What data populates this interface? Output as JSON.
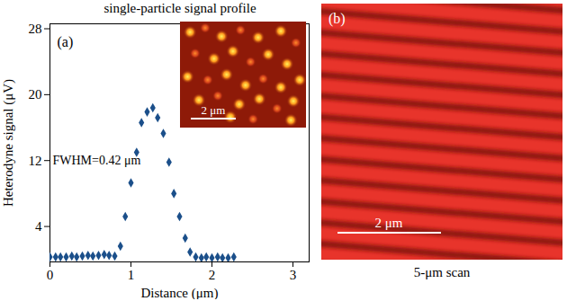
{
  "chart_data": {
    "type": "scatter",
    "panel": "(a)",
    "title": "single-particle signal profile",
    "x_label": "Distance (μm)",
    "y_label": "Heterodyne signal (μV)",
    "x": [
      0,
      0.07,
      0.13,
      0.2,
      0.27,
      0.33,
      0.4,
      0.47,
      0.53,
      0.6,
      0.67,
      0.73,
      0.8,
      0.87,
      0.93,
      1.0,
      1.07,
      1.13,
      1.2,
      1.27,
      1.33,
      1.4,
      1.47,
      1.53,
      1.6,
      1.67,
      1.73,
      1.8,
      1.87,
      1.93,
      2.0,
      2.07,
      2.13,
      2.2,
      2.27
    ],
    "values": [
      0.3,
      0.3,
      0.3,
      0.3,
      0.4,
      0.3,
      0.4,
      0.5,
      0.4,
      0.5,
      0.6,
      0.5,
      0.4,
      1.6,
      5.2,
      9.3,
      13.0,
      16.6,
      17.9,
      18.4,
      17.2,
      15.3,
      11.8,
      8.0,
      5.2,
      2.6,
      0.9,
      0.3,
      0.2,
      0.3,
      0.2,
      0.3,
      0.2,
      0.2,
      0.3
    ],
    "xlim": [
      0,
      3.2
    ],
    "xticks": [
      0,
      1,
      2,
      3
    ],
    "ylim": [
      -0.3,
      28.6
    ],
    "yticks": [
      4,
      12,
      20,
      28
    ],
    "color": "#1b4f8a",
    "marker": "diamond",
    "annotations": [
      "FWHM=0.42 μm"
    ],
    "inset": {
      "scale_bar": "2 μm"
    }
  },
  "panel_b": {
    "panel": "(b)",
    "scale_bar": "2 μm",
    "caption": "5-μm scan"
  }
}
